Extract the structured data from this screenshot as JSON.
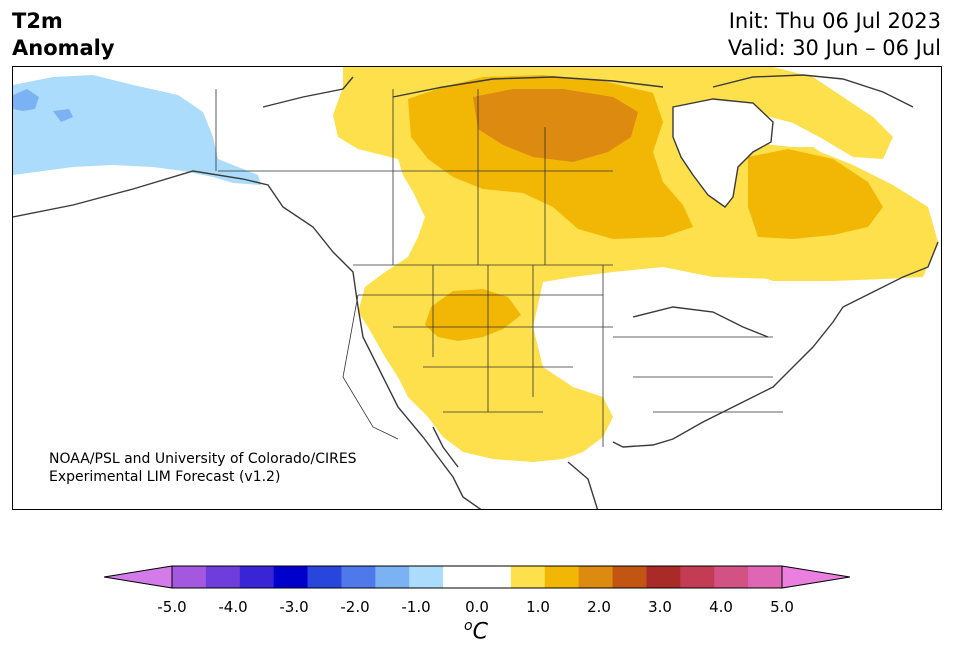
{
  "header": {
    "title_line1": "T2m",
    "title_line2": "Anomaly",
    "init_text": "Init: Thu 06 Jul 2023",
    "valid_text": "Valid: 30 Jun – 06 Jul"
  },
  "credit": {
    "line1": "NOAA/PSL and University of Colorado/CIRES",
    "line2": "Experimental LIM Forecast (v1.2)"
  },
  "colorbar": {
    "unit_base": "C",
    "unit_sup": "o",
    "range": [
      -5.0,
      5.0
    ],
    "step": 0.5,
    "extend": "both",
    "levels_colors": [
      "#d37ce9",
      "#a458e0",
      "#6e3ddc",
      "#3a25d6",
      "#0000cd",
      "#2846dc",
      "#4f79ea",
      "#7ab2f3",
      "#acdcfb",
      "#ffffff",
      "#ffffff",
      "#fde04b",
      "#f2b705",
      "#dc8a10",
      "#c35513",
      "#aa2a27",
      "#c33c53",
      "#d15283",
      "#de66b5",
      "#eb7fe0"
    ],
    "tick_labels": [
      "-5.0",
      "-4.0",
      "-3.0",
      "-2.0",
      "-1.0",
      "0.0",
      "1.0",
      "2.0",
      "3.0",
      "4.0",
      "5.0"
    ]
  },
  "map": {
    "projection_view": "North America",
    "colors": {
      "positive_1": "#fde04b",
      "positive_2": "#f2b705",
      "positive_3": "#dc8a10",
      "negative_1": "#acdcfb",
      "negative_2": "#7ab2f3",
      "boundaries": "#333333"
    }
  }
}
